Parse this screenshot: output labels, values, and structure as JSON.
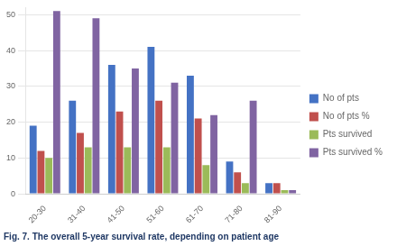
{
  "chart_data": {
    "type": "bar",
    "title": "Fig. 7. The overall 5-year survival rate, depending on patient age",
    "categories": [
      "20-30",
      "31-40",
      "41-50",
      "51-60",
      "61-70",
      "71-80",
      "81-90"
    ],
    "series": [
      {
        "name": "No of pts",
        "color": "#4472C4",
        "values": [
          19,
          26,
          36,
          41,
          33,
          9,
          3
        ]
      },
      {
        "name": "No of pts %",
        "color": "#C0504D",
        "values": [
          12,
          17,
          23,
          26,
          21,
          6,
          3
        ]
      },
      {
        "name": "Pts survived",
        "color": "#9BBB59",
        "values": [
          10,
          13,
          13,
          13,
          8,
          3,
          1
        ]
      },
      {
        "name": "Pts survived %",
        "color": "#8064A2",
        "values": [
          51,
          49,
          35,
          31,
          22,
          26,
          1
        ]
      }
    ],
    "ylim": [
      0,
      52
    ],
    "yticks": [
      0,
      10,
      20,
      30,
      40,
      50
    ],
    "grid": true,
    "legend": "right"
  }
}
